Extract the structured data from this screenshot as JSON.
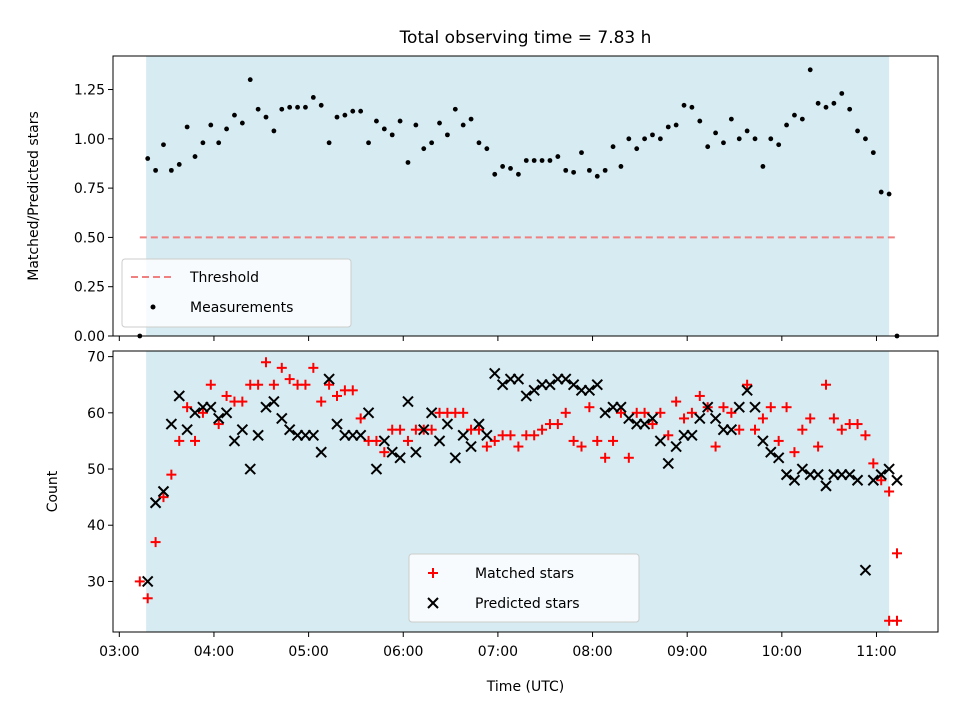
{
  "chart_data": [
    {
      "type": "scatter",
      "title": "Total observing time = 7.83 h",
      "xlabel": "",
      "ylabel": "Matched/Predicted stars",
      "xlim": [
        "02:56",
        "11:39"
      ],
      "ylim": [
        0,
        1.42
      ],
      "yticks": [
        "0.00",
        "0.25",
        "0.50",
        "0.75",
        "1.00",
        "1.25"
      ],
      "grid": false,
      "legend_position": "lower-left",
      "shaded_interval": [
        "03:17",
        "11:08"
      ],
      "series": [
        {
          "name": "Threshold",
          "kind": "dashed-line",
          "color": "#f08080",
          "x": [
            "03:13",
            "11:13"
          ],
          "y": [
            0.5,
            0.5
          ]
        },
        {
          "name": "Measurements",
          "kind": "points",
          "color": "#000000",
          "x": [
            "03:13",
            "03:18",
            "03:23",
            "03:28",
            "03:33",
            "03:38",
            "03:43",
            "03:48",
            "03:53",
            "03:58",
            "04:03",
            "04:08",
            "04:13",
            "04:18",
            "04:23",
            "04:28",
            "04:33",
            "04:38",
            "04:43",
            "04:48",
            "04:53",
            "04:58",
            "05:03",
            "05:08",
            "05:13",
            "05:18",
            "05:23",
            "05:28",
            "05:33",
            "05:38",
            "05:43",
            "05:48",
            "05:53",
            "05:58",
            "06:03",
            "06:08",
            "06:13",
            "06:18",
            "06:23",
            "06:28",
            "06:33",
            "06:38",
            "06:43",
            "06:48",
            "06:53",
            "06:58",
            "07:03",
            "07:08",
            "07:13",
            "07:18",
            "07:23",
            "07:28",
            "07:33",
            "07:38",
            "07:43",
            "07:48",
            "07:53",
            "07:58",
            "08:03",
            "08:08",
            "08:13",
            "08:18",
            "08:23",
            "08:28",
            "08:33",
            "08:38",
            "08:43",
            "08:48",
            "08:53",
            "08:58",
            "09:03",
            "09:08",
            "09:13",
            "09:18",
            "09:23",
            "09:28",
            "09:33",
            "09:38",
            "09:43",
            "09:48",
            "09:53",
            "09:58",
            "10:03",
            "10:08",
            "10:13",
            "10:18",
            "10:23",
            "10:28",
            "10:33",
            "10:38",
            "10:43",
            "10:48",
            "10:53",
            "10:58",
            "11:03",
            "11:08",
            "11:13"
          ],
          "y": [
            0.0,
            0.9,
            0.84,
            0.97,
            0.84,
            0.87,
            1.06,
            0.91,
            0.98,
            1.07,
            0.98,
            1.05,
            1.12,
            1.08,
            1.3,
            1.15,
            1.11,
            1.04,
            1.15,
            1.16,
            1.16,
            1.16,
            1.21,
            1.17,
            0.98,
            1.11,
            1.12,
            1.14,
            1.14,
            0.98,
            1.09,
            1.05,
            1.02,
            1.09,
            0.88,
            1.07,
            0.95,
            0.98,
            1.08,
            1.02,
            1.15,
            1.07,
            1.1,
            0.98,
            0.95,
            0.82,
            0.86,
            0.85,
            0.82,
            0.89,
            0.89,
            0.89,
            0.89,
            0.91,
            0.84,
            0.83,
            0.93,
            0.84,
            0.81,
            0.84,
            0.96,
            0.86,
            1.0,
            0.95,
            1.0,
            1.02,
            1.0,
            1.06,
            1.07,
            1.17,
            1.16,
            1.09,
            0.96,
            1.03,
            0.98,
            1.1,
            1.0,
            1.04,
            1.0,
            0.86,
            1.0,
            0.97,
            1.07,
            1.12,
            1.1,
            1.35,
            1.18,
            1.16,
            1.18,
            1.23,
            1.15,
            1.04,
            1.0,
            0.93,
            0.73,
            0.72,
            0.0
          ]
        }
      ]
    },
    {
      "type": "scatter",
      "title": "",
      "xlabel": "Time (UTC)",
      "ylabel": "Count",
      "xlim": [
        "02:56",
        "11:39"
      ],
      "ylim": [
        21,
        71
      ],
      "yticks": [
        "30",
        "40",
        "50",
        "60",
        "70"
      ],
      "xticks": [
        "03:00",
        "04:00",
        "05:00",
        "06:00",
        "07:00",
        "08:00",
        "09:00",
        "10:00",
        "11:00"
      ],
      "grid": false,
      "legend_position": "lower-center",
      "shaded_interval": [
        "03:17",
        "11:08"
      ],
      "series": [
        {
          "name": "Matched stars",
          "marker": "+",
          "color": "#ff0000",
          "x": [
            "03:13",
            "03:18",
            "03:23",
            "03:28",
            "03:33",
            "03:38",
            "03:43",
            "03:48",
            "03:53",
            "03:58",
            "04:03",
            "04:08",
            "04:13",
            "04:18",
            "04:23",
            "04:28",
            "04:33",
            "04:38",
            "04:43",
            "04:48",
            "04:53",
            "04:58",
            "05:03",
            "05:08",
            "05:13",
            "05:18",
            "05:23",
            "05:28",
            "05:33",
            "05:38",
            "05:43",
            "05:48",
            "05:53",
            "05:58",
            "06:03",
            "06:08",
            "06:13",
            "06:18",
            "06:23",
            "06:28",
            "06:33",
            "06:38",
            "06:43",
            "06:48",
            "06:53",
            "06:58",
            "07:03",
            "07:08",
            "07:13",
            "07:18",
            "07:23",
            "07:28",
            "07:33",
            "07:38",
            "07:43",
            "07:48",
            "07:53",
            "07:58",
            "08:03",
            "08:08",
            "08:13",
            "08:18",
            "08:23",
            "08:28",
            "08:33",
            "08:38",
            "08:43",
            "08:48",
            "08:53",
            "08:58",
            "09:03",
            "09:08",
            "09:13",
            "09:18",
            "09:23",
            "09:28",
            "09:33",
            "09:38",
            "09:43",
            "09:48",
            "09:53",
            "09:58",
            "10:03",
            "10:08",
            "10:13",
            "10:18",
            "10:23",
            "10:28",
            "10:33",
            "10:38",
            "10:43",
            "10:48",
            "10:53",
            "10:58",
            "11:03",
            "11:08",
            "11:13"
          ],
          "y": [
            30,
            27,
            37,
            45,
            49,
            55,
            61,
            55,
            60,
            65,
            58,
            63,
            62,
            62,
            65,
            65,
            69,
            65,
            68,
            66,
            65,
            65,
            68,
            62,
            65,
            63,
            64,
            64,
            59,
            55,
            55,
            53,
            57,
            57,
            55,
            57,
            57,
            57,
            60,
            60,
            60,
            60,
            57,
            57,
            54,
            55,
            56,
            56,
            54,
            56,
            56,
            57,
            58,
            58,
            60,
            55,
            54,
            61,
            55,
            52,
            55,
            60,
            52,
            60,
            60,
            58,
            60,
            56,
            62,
            59,
            60,
            63,
            61,
            54,
            61,
            60,
            57,
            65,
            57,
            59,
            61,
            55,
            61,
            53,
            57,
            59,
            54,
            65,
            59,
            57,
            58,
            58,
            56,
            51,
            48,
            46,
            35
          ],
          "extra_points": [
            {
              "x": "11:08",
              "y": 23
            },
            {
              "x": "11:13",
              "y": 23
            }
          ]
        },
        {
          "name": "Predicted stars",
          "marker": "x",
          "color": "#000000",
          "x": [
            "03:18",
            "03:23",
            "03:28",
            "03:33",
            "03:38",
            "03:43",
            "03:48",
            "03:53",
            "03:58",
            "04:03",
            "04:08",
            "04:13",
            "04:18",
            "04:23",
            "04:28",
            "04:33",
            "04:38",
            "04:43",
            "04:48",
            "04:53",
            "04:58",
            "05:03",
            "05:08",
            "05:13",
            "05:18",
            "05:23",
            "05:28",
            "05:33",
            "05:38",
            "05:43",
            "05:48",
            "05:53",
            "05:58",
            "06:03",
            "06:08",
            "06:13",
            "06:18",
            "06:23",
            "06:28",
            "06:33",
            "06:38",
            "06:43",
            "06:48",
            "06:53",
            "06:58",
            "07:03",
            "07:08",
            "07:13",
            "07:18",
            "07:23",
            "07:28",
            "07:33",
            "07:38",
            "07:43",
            "07:48",
            "07:53",
            "07:58",
            "08:03",
            "08:08",
            "08:13",
            "08:18",
            "08:23",
            "08:28",
            "08:33",
            "08:38",
            "08:43",
            "08:48",
            "08:53",
            "08:58",
            "09:03",
            "09:08",
            "09:13",
            "09:18",
            "09:23",
            "09:28",
            "09:33",
            "09:38",
            "09:43",
            "09:48",
            "09:53",
            "09:58",
            "10:03",
            "10:08",
            "10:13",
            "10:18",
            "10:23",
            "10:28",
            "10:33",
            "10:38",
            "10:43",
            "10:48",
            "10:53",
            "10:58",
            "11:03",
            "11:08",
            "11:13"
          ],
          "y": [
            30,
            44,
            46,
            58,
            63,
            57,
            60,
            61,
            61,
            59,
            60,
            55,
            57,
            50,
            56,
            61,
            62,
            59,
            57,
            56,
            56,
            56,
            53,
            66,
            58,
            56,
            56,
            56,
            60,
            50,
            55,
            53,
            52,
            62,
            53,
            57,
            60,
            55,
            58,
            52,
            56,
            54,
            58,
            56,
            67,
            65,
            66,
            66,
            63,
            64,
            65,
            65,
            66,
            66,
            65,
            64,
            64,
            65,
            60,
            61,
            61,
            59,
            58,
            58,
            59,
            55,
            51,
            54,
            56,
            56,
            59,
            61,
            59,
            57,
            57,
            61,
            64,
            61,
            55,
            53,
            52,
            49,
            48,
            50,
            49,
            49,
            47,
            49,
            49,
            49,
            48,
            32,
            48,
            49,
            50,
            48
          ],
          "extra_points": []
        }
      ]
    }
  ]
}
